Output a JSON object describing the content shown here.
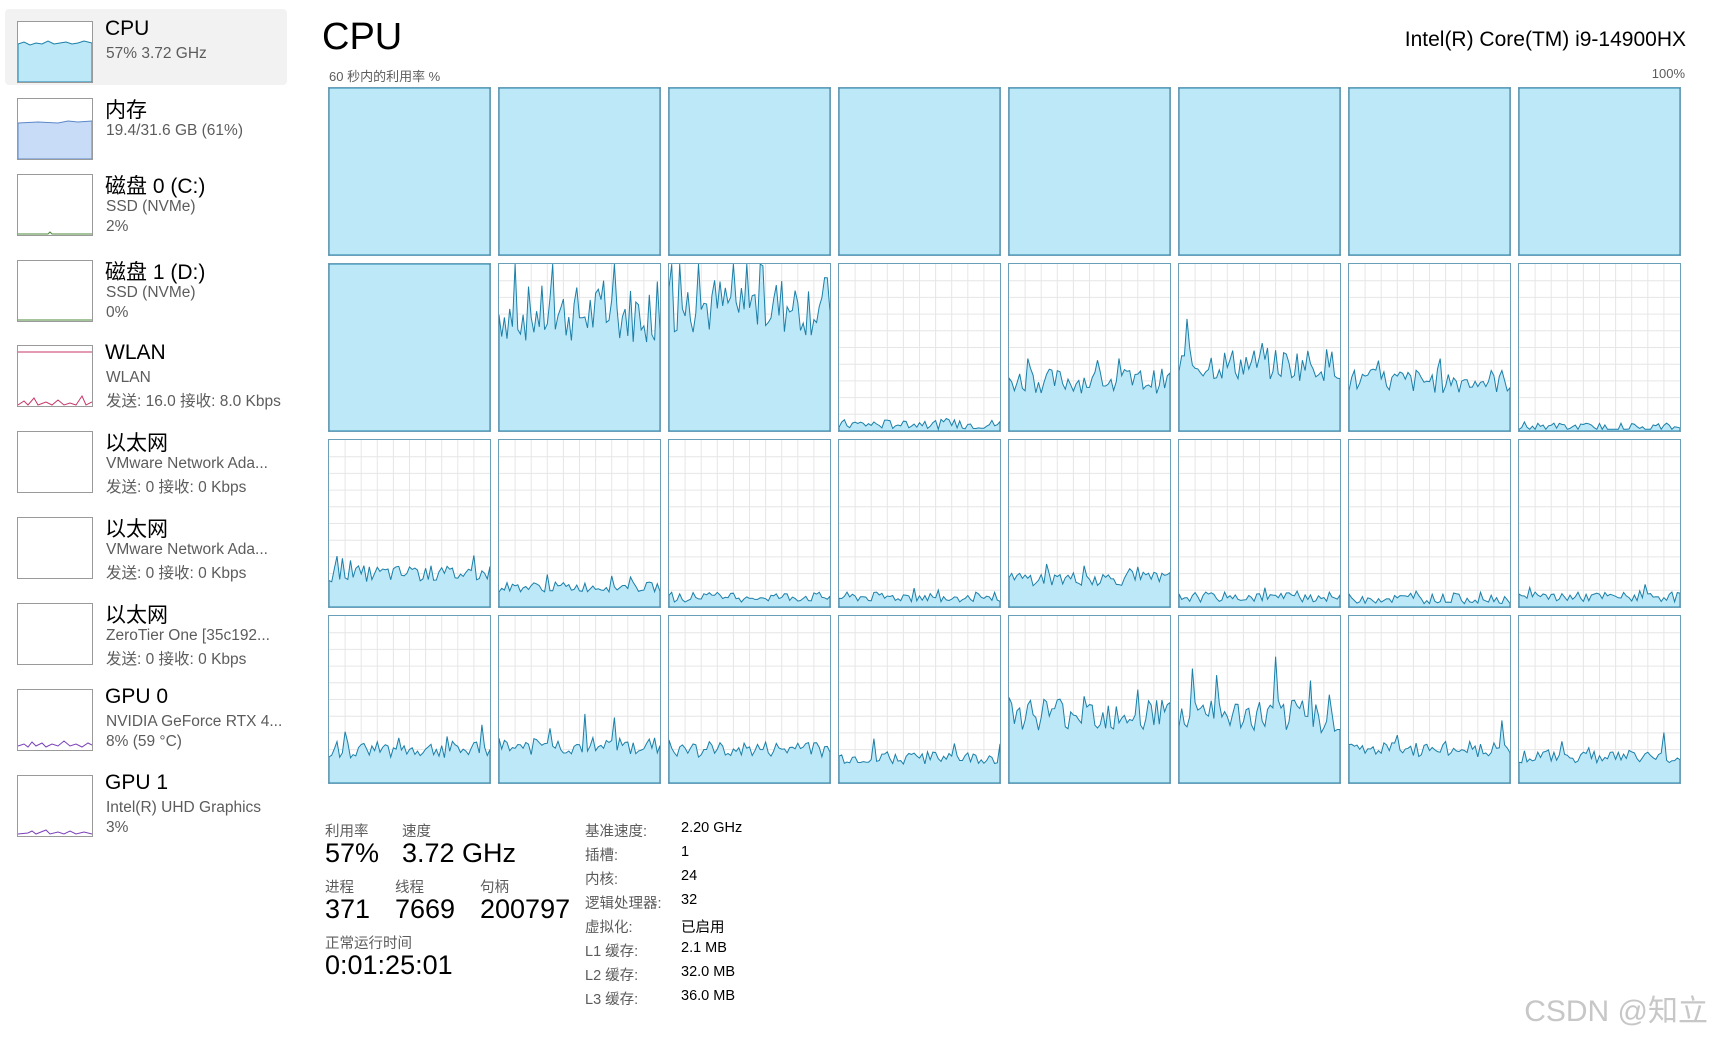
{
  "sidebar": {
    "items": [
      {
        "title": "CPU",
        "line1": "57% 3.72 GHz",
        "line2": "",
        "active": true,
        "graph": "cpu-graph-icon"
      },
      {
        "title": "内存",
        "line1": "19.4/31.6 GB (61%)",
        "line2": "",
        "active": false,
        "graph": "memory-graph-icon"
      },
      {
        "title": "磁盘 0 (C:)",
        "line1": "SSD (NVMe)",
        "line2": "2%",
        "active": false,
        "graph": "disk-graph-icon"
      },
      {
        "title": "磁盘 1 (D:)",
        "line1": "SSD (NVMe)",
        "line2": "0%",
        "active": false,
        "graph": "disk-graph-icon"
      },
      {
        "title": "WLAN",
        "line1": "WLAN",
        "line2": "发送: 16.0  接收: 8.0 Kbps",
        "active": false,
        "graph": "network-graph-icon"
      },
      {
        "title": "以太网",
        "line1": "VMware Network Ada...",
        "line2": "发送: 0  接收: 0 Kbps",
        "active": false,
        "graph": "network-graph-icon"
      },
      {
        "title": "以太网",
        "line1": "VMware Network Ada...",
        "line2": "发送: 0  接收: 0 Kbps",
        "active": false,
        "graph": "network-graph-icon"
      },
      {
        "title": "以太网",
        "line1": "ZeroTier One [35c192...",
        "line2": "发送: 0  接收: 0 Kbps",
        "active": false,
        "graph": "network-graph-icon"
      },
      {
        "title": "GPU 0",
        "line1": "NVIDIA GeForce RTX 4...",
        "line2": "8% (59 °C)",
        "active": false,
        "graph": "gpu-graph-icon"
      },
      {
        "title": "GPU 1",
        "line1": "Intel(R) UHD Graphics",
        "line2": "3%",
        "active": false,
        "graph": "gpu-graph-icon"
      }
    ]
  },
  "header": {
    "title": "CPU",
    "cpu_model": "Intel(R) Core(TM) i9-14900HX",
    "util_caption": "60 秒内的利用率 %",
    "util_max": "100%"
  },
  "colors": {
    "cpu_line": "#1b7fa8",
    "cpu_fill": "#bde8f7",
    "cpu_border": "#6b9fb7",
    "memory_fill": "#c9dcf7",
    "memory_line": "#5b87c8",
    "network_line": "#c8366b",
    "gpu_line": "#7a3fb8",
    "grid_line": "#e6e6e6"
  },
  "core_levels": [
    [
      100,
      100,
      100,
      100,
      100,
      100,
      100,
      100
    ],
    [
      100,
      70,
      75,
      4,
      30,
      40,
      30,
      2
    ],
    [
      20,
      12,
      6,
      6,
      17,
      6,
      5,
      6
    ],
    [
      20,
      22,
      20,
      15,
      42,
      40,
      20,
      16
    ]
  ],
  "stats": {
    "utilization": {
      "label": "利用率",
      "value": "57%"
    },
    "speed": {
      "label": "速度",
      "value": "3.72 GHz"
    },
    "processes": {
      "label": "进程",
      "value": "371"
    },
    "threads": {
      "label": "线程",
      "value": "7669"
    },
    "handles": {
      "label": "句柄",
      "value": "200797"
    },
    "uptime": {
      "label": "正常运行时间",
      "value": "0:01:25:01"
    }
  },
  "specs": [
    {
      "key": "基准速度:",
      "value": "2.20 GHz"
    },
    {
      "key": "插槽:",
      "value": "1"
    },
    {
      "key": "内核:",
      "value": "24"
    },
    {
      "key": "逻辑处理器:",
      "value": "32"
    },
    {
      "key": "虚拟化:",
      "value": "已启用"
    },
    {
      "key": "L1 缓存:",
      "value": "2.1 MB"
    },
    {
      "key": "L2 缓存:",
      "value": "32.0 MB"
    },
    {
      "key": "L3 缓存:",
      "value": "36.0 MB"
    }
  ],
  "watermark": "CSDN @知立"
}
